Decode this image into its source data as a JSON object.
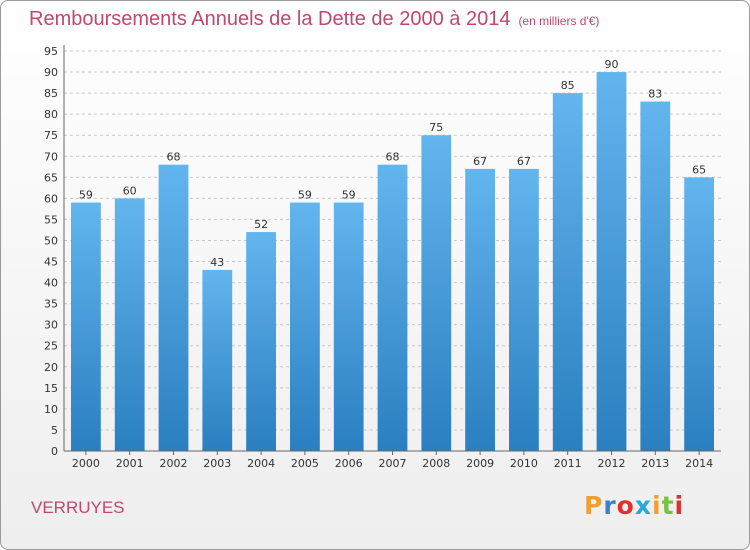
{
  "header": {
    "title": "Remboursements Annuels de la Dette de 2000 à 2014",
    "subtitle": "(en milliers d'€)"
  },
  "footer": {
    "location": "VERRUYES",
    "logo_text": "Proxiti"
  },
  "colors": {
    "title": "#c1476e",
    "bar_top": "#63b5ee",
    "bar_bottom": "#2a7fc0",
    "grid": "#c8c8c8",
    "logo": [
      "#f0a030",
      "#3a7fd0",
      "#e03030",
      "#2aa8d8",
      "#f0a030",
      "#7ac143",
      "#e03030"
    ]
  },
  "chart_data": {
    "type": "bar",
    "title": "Remboursements Annuels de la Dette de 2000 à 2014",
    "subtitle": "(en milliers d'€)",
    "xlabel": "",
    "ylabel": "",
    "categories": [
      "2000",
      "2001",
      "2002",
      "2003",
      "2004",
      "2005",
      "2006",
      "2007",
      "2008",
      "2009",
      "2010",
      "2011",
      "2012",
      "2013",
      "2014"
    ],
    "values": [
      59,
      60,
      68,
      43,
      52,
      59,
      59,
      68,
      75,
      67,
      67,
      85,
      90,
      83,
      65
    ],
    "ylim": [
      0,
      95
    ],
    "ytick_step": 5,
    "grid": true,
    "legend": "none"
  }
}
